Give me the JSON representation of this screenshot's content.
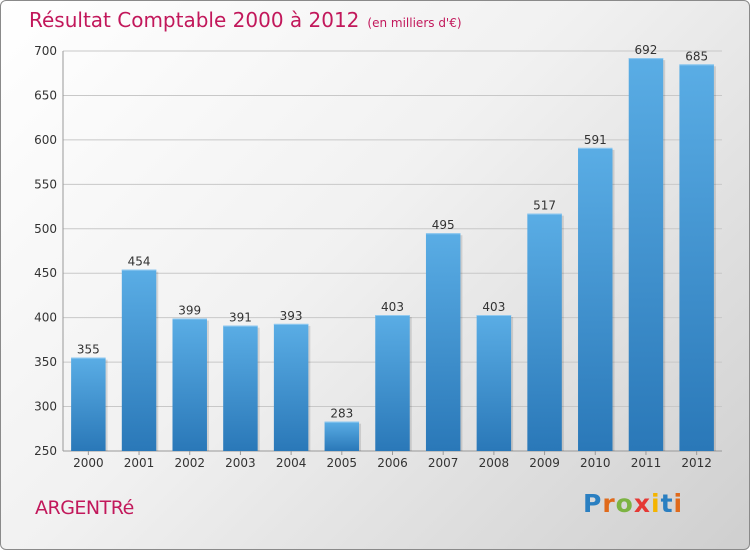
{
  "header": {
    "title": "Résultat Comptable 2000 à 2012",
    "subtitle": "(en milliers d'€)"
  },
  "footer": {
    "commune": "ARGENTRé",
    "logo": [
      "P",
      "r",
      "o",
      "x",
      "i",
      "t",
      "i"
    ]
  },
  "colors": {
    "title": "#c2185b",
    "bar_light": "#5aade5",
    "bar_dark": "#2a78b8",
    "logo": [
      "#2a7fc1",
      "#e06a1b",
      "#7cb342",
      "#e53935",
      "#f4b400",
      "#2a7fc1",
      "#e06a1b"
    ]
  },
  "chart_data": {
    "type": "bar",
    "categories": [
      "2000",
      "2001",
      "2002",
      "2003",
      "2004",
      "2005",
      "2006",
      "2007",
      "2008",
      "2009",
      "2010",
      "2011",
      "2012"
    ],
    "values": [
      355,
      454,
      399,
      391,
      393,
      283,
      403,
      495,
      403,
      517,
      591,
      692,
      685
    ],
    "ylim": [
      250,
      700
    ],
    "yticks": [
      250,
      300,
      350,
      400,
      450,
      500,
      550,
      600,
      650,
      700
    ],
    "grid": true
  }
}
